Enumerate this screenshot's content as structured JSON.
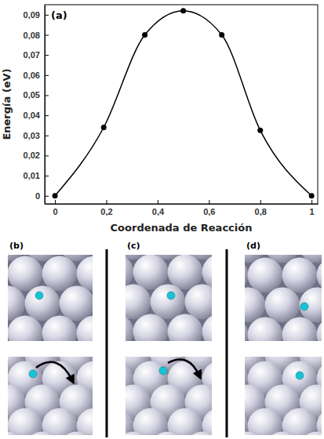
{
  "chart_data": {
    "type": "line",
    "title": "(a)",
    "x_label": "Coordenada de Reacción",
    "y_label": "Energía (eV)",
    "x": [
      0,
      0.19,
      0.35,
      0.5,
      0.65,
      0.8,
      1
    ],
    "series": [
      {
        "color": "#000000",
        "marker": "circle",
        "line_style": "solid",
        "values": [
          0,
          0.034,
          0.08,
          0.092,
          0.08,
          0.0325,
          0
        ]
      }
    ],
    "xlim": [
      -0.04,
      1.024
    ],
    "ylim": [
      -0.004,
      0.095
    ],
    "xticks": [
      0,
      {
        "value": 0.2,
        "label": "0,2"
      },
      {
        "value": 0.4,
        "label": "0,4"
      },
      {
        "value": 0.6,
        "label": "0,6"
      },
      {
        "value": 0.8,
        "label": "0,8"
      },
      1
    ],
    "yticks": [
      0,
      {
        "value": 0.01,
        "label": "0,01"
      },
      {
        "value": 0.02,
        "label": "0,02"
      },
      {
        "value": 0.03,
        "label": "0,03"
      },
      {
        "value": 0.04,
        "label": "0,04"
      },
      {
        "value": 0.05,
        "label": "0,05"
      },
      {
        "value": 0.06,
        "label": "0,06"
      },
      {
        "value": 0.07,
        "label": "0,07"
      },
      {
        "value": 0.08,
        "label": "0,08"
      },
      {
        "value": 0.09,
        "label": "0,09"
      }
    ],
    "grid": false
  },
  "panels": [
    "(b)",
    "(c)",
    "(d)"
  ]
}
